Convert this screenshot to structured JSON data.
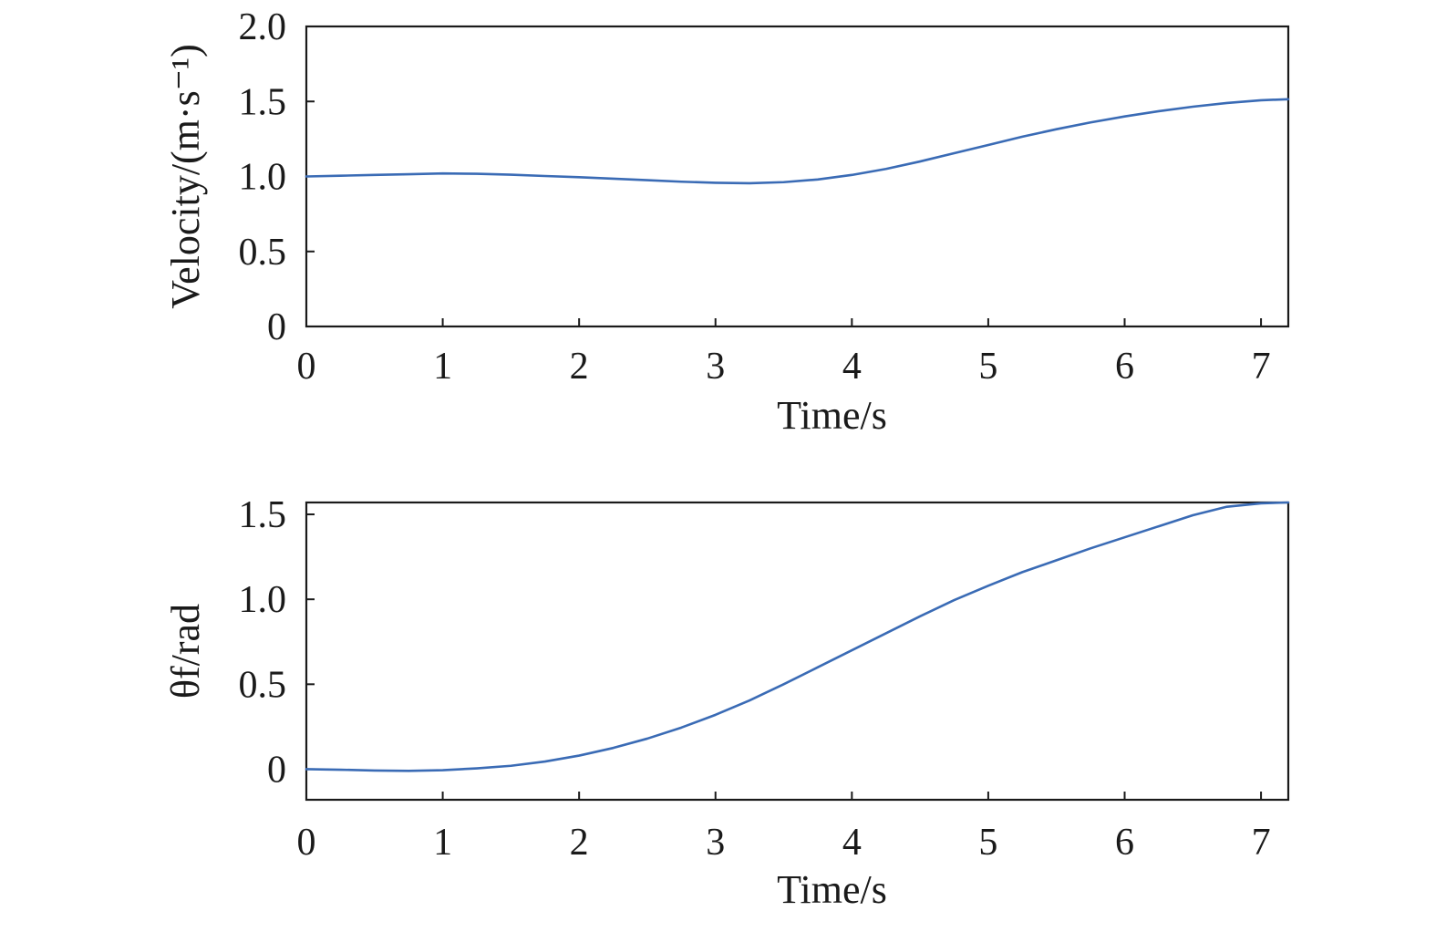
{
  "colors": {
    "series": "#3a6bb5",
    "axes": "#1a1a1a"
  },
  "chart_data": [
    {
      "type": "line",
      "xlabel": "Time/s",
      "ylabel": "Velocity/(m·s⁻¹)",
      "xlim": [
        0,
        7.2
      ],
      "ylim": [
        0,
        2.0
      ],
      "xticks": [
        0,
        1,
        2,
        3,
        4,
        5,
        6,
        7
      ],
      "xtick_labels": [
        "0",
        "1",
        "2",
        "3",
        "4",
        "5",
        "6",
        "7"
      ],
      "yticks": [
        0,
        0.5,
        1.0,
        1.5,
        2.0
      ],
      "ytick_labels": [
        "0",
        "0.5",
        "1.0",
        "1.5",
        "2.0"
      ],
      "grid": false,
      "series": [
        {
          "x": [
            0,
            0.25,
            0.5,
            0.75,
            1.0,
            1.25,
            1.5,
            1.75,
            2.0,
            2.25,
            2.5,
            2.75,
            3.0,
            3.25,
            3.5,
            3.75,
            4.0,
            4.25,
            4.5,
            4.75,
            5.0,
            5.25,
            5.5,
            5.75,
            6.0,
            6.25,
            6.5,
            6.75,
            7.0,
            7.2
          ],
          "y": [
            1.0,
            1.005,
            1.01,
            1.015,
            1.02,
            1.018,
            1.012,
            1.003,
            0.995,
            0.985,
            0.975,
            0.965,
            0.958,
            0.955,
            0.962,
            0.98,
            1.01,
            1.05,
            1.1,
            1.155,
            1.21,
            1.265,
            1.315,
            1.36,
            1.4,
            1.435,
            1.465,
            1.49,
            1.508,
            1.515
          ]
        }
      ]
    },
    {
      "type": "line",
      "xlabel": "Time/s",
      "ylabel": "θf/rad",
      "xlim": [
        0,
        7.2
      ],
      "ylim": [
        -0.18,
        1.57
      ],
      "xticks": [
        0,
        1,
        2,
        3,
        4,
        5,
        6,
        7
      ],
      "xtick_labels": [
        "0",
        "1",
        "2",
        "3",
        "4",
        "5",
        "6",
        "7"
      ],
      "yticks": [
        0,
        0.5,
        1.0,
        1.5
      ],
      "ytick_labels": [
        "0",
        "0.5",
        "1.0",
        "1.5"
      ],
      "grid": false,
      "series": [
        {
          "x": [
            0,
            0.25,
            0.5,
            0.75,
            1.0,
            1.25,
            1.5,
            1.75,
            2.0,
            2.25,
            2.5,
            2.75,
            3.0,
            3.25,
            3.5,
            3.75,
            4.0,
            4.25,
            4.5,
            4.75,
            5.0,
            5.25,
            5.5,
            5.75,
            6.0,
            6.25,
            6.5,
            6.75,
            7.0,
            7.2
          ],
          "y": [
            0.0,
            -0.003,
            -0.008,
            -0.01,
            -0.006,
            0.005,
            0.02,
            0.045,
            0.08,
            0.125,
            0.18,
            0.245,
            0.32,
            0.405,
            0.5,
            0.6,
            0.7,
            0.8,
            0.9,
            0.995,
            1.08,
            1.16,
            1.23,
            1.3,
            1.365,
            1.43,
            1.495,
            1.545,
            1.565,
            1.57
          ]
        }
      ]
    }
  ]
}
